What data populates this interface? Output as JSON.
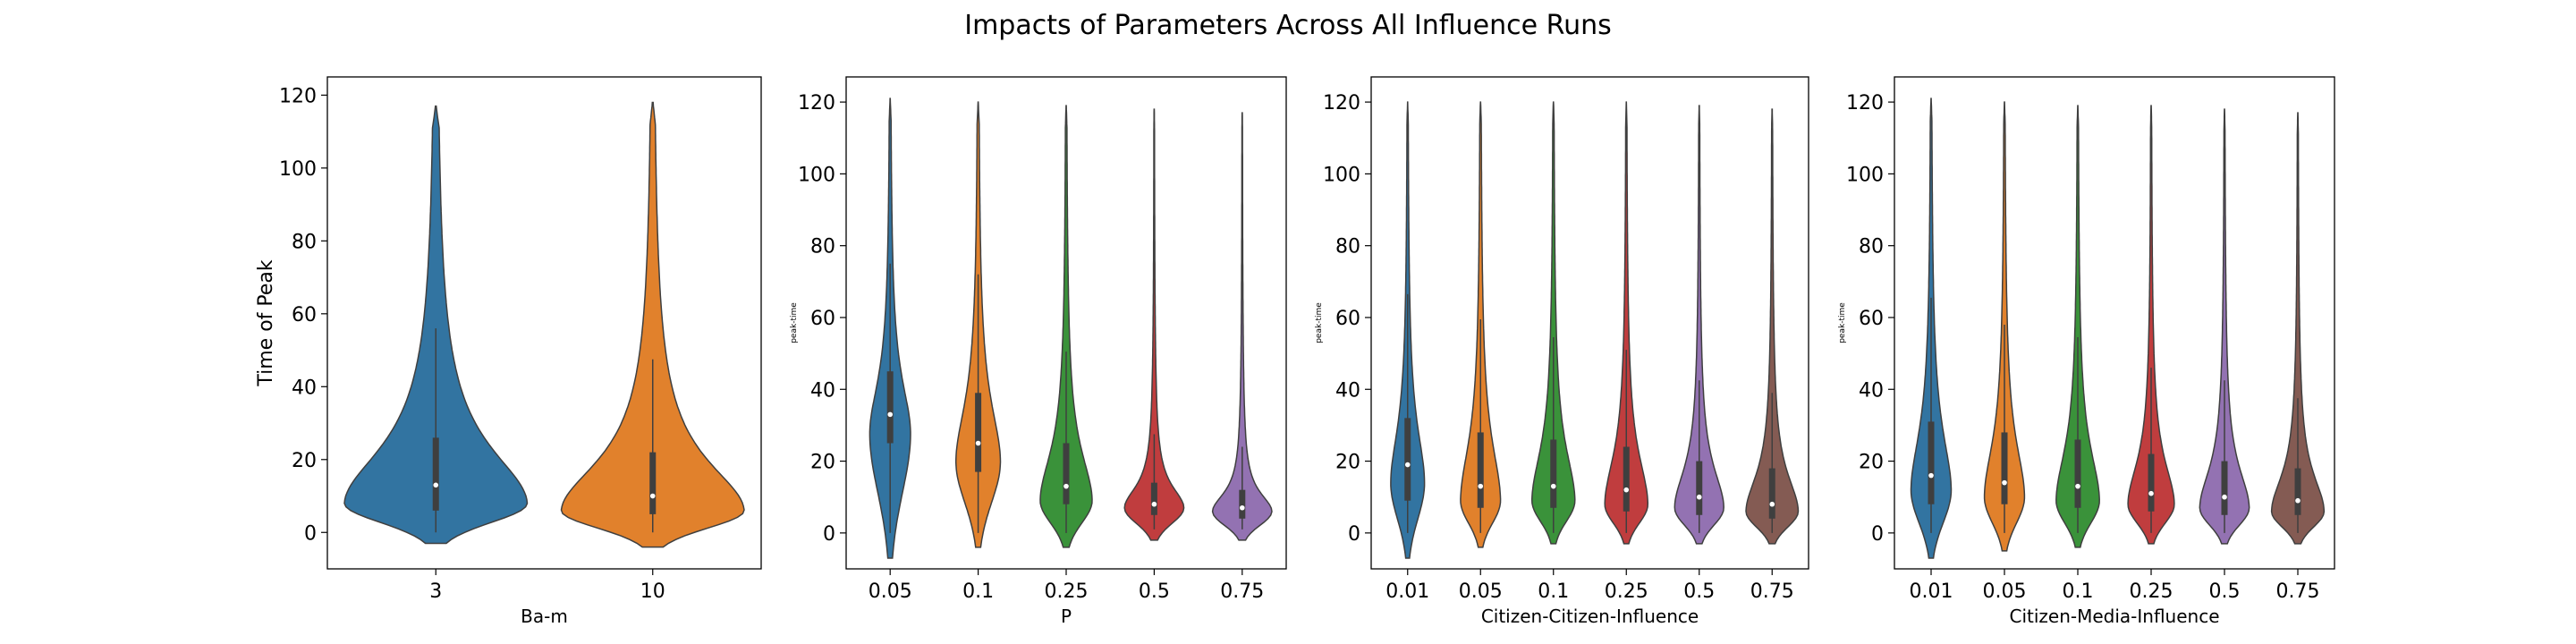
{
  "figure": {
    "title": "Impacts of Parameters Across All Influence Runs"
  },
  "colors": {
    "blue": "#3274a1",
    "orange": "#e1812c",
    "green": "#3a923a",
    "red": "#c03d3e",
    "purple": "#9372b2",
    "brown": "#845b53"
  },
  "chart_data": [
    {
      "type": "violin",
      "xlabel": "Ba-m",
      "ylabel": "Time of Peak",
      "ylim": [
        -10,
        125
      ],
      "yticks": [
        0,
        20,
        40,
        60,
        80,
        100,
        120
      ],
      "categories": [
        "3",
        "10"
      ],
      "violins": [
        {
          "min": -3,
          "max": 117,
          "q1": 6,
          "median": 13,
          "q3": 26,
          "mode": 8,
          "width": 1.0,
          "color": "#3274a1"
        },
        {
          "min": -4,
          "max": 118,
          "q1": 5,
          "median": 10,
          "q3": 22,
          "mode": 6,
          "width": 1.0,
          "color": "#e1812c"
        }
      ]
    },
    {
      "type": "violin",
      "xlabel": "P",
      "ylabel": "peak-time",
      "ylim": [
        -10,
        127
      ],
      "yticks": [
        0,
        20,
        40,
        60,
        80,
        100,
        120
      ],
      "categories": [
        "0.05",
        "0.1",
        "0.25",
        "0.5",
        "0.75"
      ],
      "violins": [
        {
          "min": -7,
          "max": 121,
          "q1": 25,
          "median": 33,
          "q3": 45,
          "mode": 28,
          "width": 0.55,
          "color": "#3274a1"
        },
        {
          "min": -4,
          "max": 120,
          "q1": 17,
          "median": 25,
          "q3": 39,
          "mode": 20,
          "width": 0.6,
          "color": "#e1812c"
        },
        {
          "min": -4,
          "max": 119,
          "q1": 8,
          "median": 13,
          "q3": 25,
          "mode": 9,
          "width": 0.7,
          "color": "#3a923a"
        },
        {
          "min": -2,
          "max": 118,
          "q1": 5,
          "median": 8,
          "q3": 14,
          "mode": 7,
          "width": 0.8,
          "color": "#c03d3e"
        },
        {
          "min": -2,
          "max": 117,
          "q1": 4,
          "median": 7,
          "q3": 12,
          "mode": 6,
          "width": 0.8,
          "color": "#9372b2"
        }
      ]
    },
    {
      "type": "violin",
      "xlabel": "Citizen-Citizen-Influence",
      "ylabel": "peak-time",
      "ylim": [
        -10,
        127
      ],
      "yticks": [
        0,
        20,
        40,
        60,
        80,
        100,
        120
      ],
      "categories": [
        "0.01",
        "0.05",
        "0.1",
        "0.25",
        "0.5",
        "0.75"
      ],
      "violins": [
        {
          "min": -7,
          "max": 120,
          "q1": 9,
          "median": 19,
          "q3": 32,
          "mode": 14,
          "width": 0.55,
          "color": "#3274a1"
        },
        {
          "min": -4,
          "max": 120,
          "q1": 7,
          "median": 13,
          "q3": 28,
          "mode": 9,
          "width": 0.65,
          "color": "#e1812c"
        },
        {
          "min": -3,
          "max": 120,
          "q1": 7,
          "median": 13,
          "q3": 26,
          "mode": 9,
          "width": 0.7,
          "color": "#3a923a"
        },
        {
          "min": -3,
          "max": 120,
          "q1": 6,
          "median": 12,
          "q3": 24,
          "mode": 8,
          "width": 0.7,
          "color": "#c03d3e"
        },
        {
          "min": -3,
          "max": 119,
          "q1": 5,
          "median": 10,
          "q3": 20,
          "mode": 7,
          "width": 0.8,
          "color": "#9372b2"
        },
        {
          "min": -3,
          "max": 118,
          "q1": 4,
          "median": 8,
          "q3": 18,
          "mode": 6,
          "width": 0.85,
          "color": "#845b53"
        }
      ]
    },
    {
      "type": "violin",
      "xlabel": "Citizen-Media-Influence",
      "ylabel": "peak-time",
      "ylim": [
        -10,
        127
      ],
      "yticks": [
        0,
        20,
        40,
        60,
        80,
        100,
        120
      ],
      "categories": [
        "0.01",
        "0.05",
        "0.1",
        "0.25",
        "0.5",
        "0.75"
      ],
      "violins": [
        {
          "min": -7,
          "max": 121,
          "q1": 8,
          "median": 16,
          "q3": 31,
          "mode": 12,
          "width": 0.65,
          "color": "#3274a1"
        },
        {
          "min": -5,
          "max": 120,
          "q1": 8,
          "median": 14,
          "q3": 28,
          "mode": 10,
          "width": 0.65,
          "color": "#e1812c"
        },
        {
          "min": -4,
          "max": 119,
          "q1": 7,
          "median": 13,
          "q3": 26,
          "mode": 9,
          "width": 0.7,
          "color": "#3a923a"
        },
        {
          "min": -3,
          "max": 119,
          "q1": 6,
          "median": 11,
          "q3": 22,
          "mode": 8,
          "width": 0.75,
          "color": "#c03d3e"
        },
        {
          "min": -3,
          "max": 118,
          "q1": 5,
          "median": 10,
          "q3": 20,
          "mode": 7,
          "width": 0.8,
          "color": "#9372b2"
        },
        {
          "min": -3,
          "max": 117,
          "q1": 5,
          "median": 9,
          "q3": 18,
          "mode": 6,
          "width": 0.85,
          "color": "#845b53"
        }
      ]
    }
  ]
}
